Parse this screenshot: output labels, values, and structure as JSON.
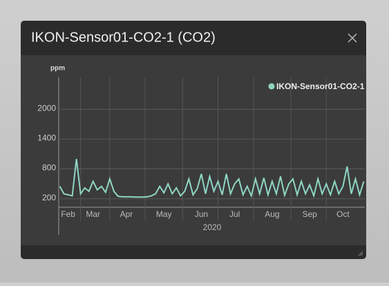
{
  "window": {
    "title": "IKON-Sensor01-CO2-1 (CO2)"
  },
  "chart_data": {
    "type": "line",
    "y_label": "ppm",
    "x_label": "2020",
    "categories": [
      null,
      null,
      "Feb",
      null,
      null,
      null,
      null,
      null,
      "Mar",
      null,
      null,
      null,
      null,
      null,
      null,
      null,
      "Apr",
      null,
      null,
      null,
      null,
      null,
      null,
      null,
      null,
      "May",
      null,
      null,
      null,
      null,
      null,
      null,
      null,
      null,
      "Jun",
      null,
      null,
      null,
      null,
      null,
      null,
      null,
      "Jul",
      null,
      null,
      null,
      null,
      null,
      null,
      null,
      null,
      "Aug",
      null,
      null,
      null,
      null,
      null,
      null,
      null,
      null,
      "Sep",
      null,
      null,
      null,
      null,
      null,
      null,
      null,
      "Oct",
      null,
      null,
      null,
      null,
      null
    ],
    "series": [
      {
        "name": "IKON-Sensor01-CO2-1",
        "color": "#8fd6c3",
        "values": [
          450,
          300,
          280,
          260,
          1000,
          300,
          420,
          350,
          550,
          380,
          450,
          330,
          600,
          350,
          250,
          240,
          240,
          240,
          235,
          235,
          235,
          240,
          260,
          300,
          450,
          320,
          500,
          300,
          420,
          260,
          350,
          600,
          280,
          400,
          700,
          300,
          650,
          350,
          550,
          280,
          700,
          300,
          500,
          600,
          280,
          450,
          260,
          600,
          300,
          620,
          280,
          550,
          300,
          650,
          270,
          500,
          600,
          280,
          550,
          300,
          480,
          260,
          600,
          300,
          500,
          280,
          550,
          300,
          450,
          850,
          300,
          600,
          280,
          550
        ]
      }
    ],
    "ylim": [
      30,
      2640
    ],
    "yticks": [
      200,
      800,
      1400,
      2000
    ],
    "grid": true,
    "legend": "top-right"
  }
}
